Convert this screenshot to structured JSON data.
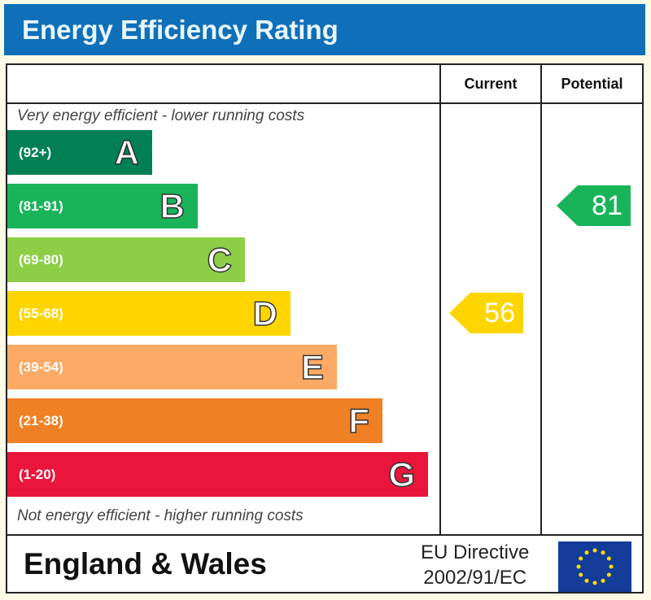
{
  "chart_data": {
    "type": "bar",
    "title": "Energy Efficiency Rating",
    "columns": [
      "Current",
      "Potential"
    ],
    "top_note": "Very energy efficient - lower running costs",
    "bottom_note": "Not energy efficient - higher running costs",
    "bands": [
      {
        "letter": "A",
        "range": "(92+)",
        "color": "#008054"
      },
      {
        "letter": "B",
        "range": "(81-91)",
        "color": "#19b459"
      },
      {
        "letter": "C",
        "range": "(69-80)",
        "color": "#8dce46"
      },
      {
        "letter": "D",
        "range": "(55-68)",
        "color": "#ffd500"
      },
      {
        "letter": "E",
        "range": "(39-54)",
        "color": "#fcaa65"
      },
      {
        "letter": "F",
        "range": "(21-38)",
        "color": "#ef8023"
      },
      {
        "letter": "G",
        "range": "(1-20)",
        "color": "#e9153b"
      }
    ],
    "current": {
      "value": "56",
      "band": "D",
      "color": "#ffd500"
    },
    "potential": {
      "value": "81",
      "band": "B",
      "color": "#19b459"
    }
  },
  "footer": {
    "region": "England & Wales",
    "directive_line1": "EU Directive",
    "directive_line2": "2002/91/EC",
    "flag_icon": "eu-flag-icon"
  }
}
